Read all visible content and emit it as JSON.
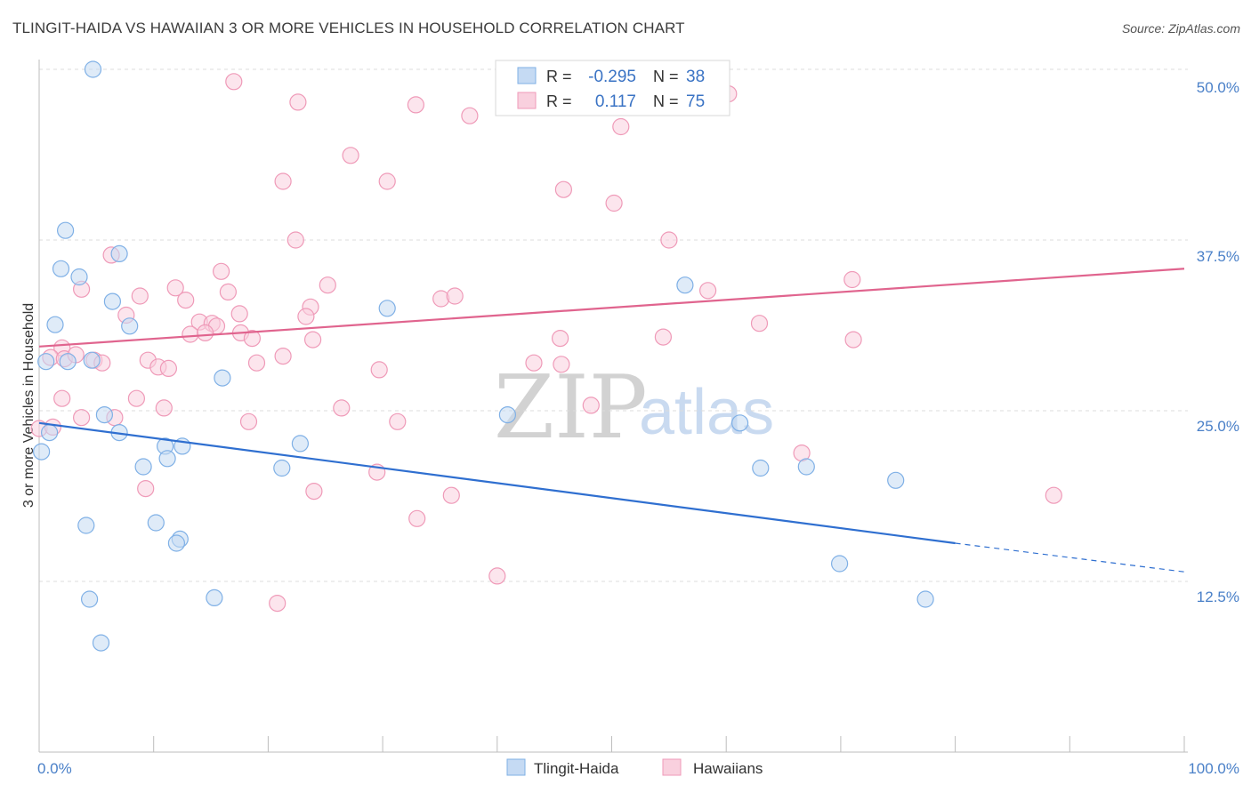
{
  "title": "TLINGIT-HAIDA VS HAWAIIAN 3 OR MORE VEHICLES IN HOUSEHOLD CORRELATION CHART",
  "source": "Source: ZipAtlas.com",
  "watermark": {
    "zip": "ZIP",
    "atlas": "atlas"
  },
  "colors": {
    "blue": "#7fb0e6",
    "blue_fill": "#c5daf3",
    "blue_line": "#2f6fd0",
    "pink": "#ef9ab8",
    "pink_fill": "#f9d0de",
    "pink_line": "#e0648e",
    "axis_text": "#4a80c8"
  },
  "legend": {
    "rows": [
      {
        "r_label": "R =",
        "r_value": "-0.295",
        "n_label": "N =",
        "n_value": "38"
      },
      {
        "r_label": "R =",
        "r_value": "0.117",
        "n_label": "N =",
        "n_value": "75"
      }
    ]
  },
  "bottom_legend": {
    "items": [
      {
        "label": "Tlingit-Haida"
      },
      {
        "label": "Hawaiians"
      }
    ]
  },
  "chart_data": {
    "type": "scatter",
    "ylabel": "3 or more Vehicles in Household",
    "x_tick_labels": [
      "0.0%",
      "100.0%"
    ],
    "y_tick_labels": [
      "12.5%",
      "25.0%",
      "37.5%",
      "50.0%"
    ],
    "xlim": [
      0,
      100
    ],
    "ylim": [
      0,
      50
    ],
    "grid": true,
    "series": [
      {
        "name": "Tlingit-Haida",
        "color": "blue",
        "trend": {
          "x0": 0,
          "y0": 24.1,
          "x1": 80,
          "y1": 15.3,
          "dash_to_x": 100,
          "dash_to_y": 13.2
        },
        "points": [
          [
            4.7,
            50.0
          ],
          [
            2.3,
            38.2
          ],
          [
            7.0,
            36.5
          ],
          [
            1.9,
            35.4
          ],
          [
            3.5,
            34.8
          ],
          [
            6.4,
            33.0
          ],
          [
            4.6,
            28.7
          ],
          [
            7.9,
            31.2
          ],
          [
            1.4,
            31.3
          ],
          [
            0.6,
            28.6
          ],
          [
            2.5,
            28.6
          ],
          [
            16.0,
            27.4
          ],
          [
            30.4,
            32.5
          ],
          [
            56.4,
            34.2
          ],
          [
            5.7,
            24.7
          ],
          [
            0.9,
            23.4
          ],
          [
            7.0,
            23.4
          ],
          [
            9.1,
            20.9
          ],
          [
            11.0,
            22.4
          ],
          [
            12.5,
            22.4
          ],
          [
            11.2,
            21.5
          ],
          [
            22.8,
            22.6
          ],
          [
            21.2,
            20.8
          ],
          [
            0.2,
            22.0
          ],
          [
            40.9,
            24.7
          ],
          [
            61.2,
            24.1
          ],
          [
            63.0,
            20.8
          ],
          [
            67.0,
            20.9
          ],
          [
            74.8,
            19.9
          ],
          [
            4.1,
            16.6
          ],
          [
            10.2,
            16.8
          ],
          [
            12.3,
            15.6
          ],
          [
            12.0,
            15.3
          ],
          [
            4.4,
            11.2
          ],
          [
            15.3,
            11.3
          ],
          [
            69.9,
            13.8
          ],
          [
            77.4,
            11.2
          ],
          [
            5.4,
            8.0
          ]
        ]
      },
      {
        "name": "Hawaiians",
        "color": "pink",
        "trend": {
          "x0": 0,
          "y0": 29.7,
          "x1": 100,
          "y1": 35.4
        },
        "points": [
          [
            17.0,
            49.1
          ],
          [
            22.6,
            47.6
          ],
          [
            32.9,
            47.4
          ],
          [
            37.6,
            46.6
          ],
          [
            60.2,
            48.2
          ],
          [
            50.8,
            45.8
          ],
          [
            27.2,
            43.7
          ],
          [
            21.3,
            41.8
          ],
          [
            30.4,
            41.8
          ],
          [
            45.8,
            41.2
          ],
          [
            50.2,
            40.2
          ],
          [
            55.0,
            37.5
          ],
          [
            22.4,
            37.5
          ],
          [
            6.3,
            36.4
          ],
          [
            15.9,
            35.2
          ],
          [
            16.5,
            33.7
          ],
          [
            25.2,
            34.2
          ],
          [
            8.8,
            33.4
          ],
          [
            12.8,
            33.1
          ],
          [
            11.9,
            34.0
          ],
          [
            3.7,
            33.9
          ],
          [
            35.1,
            33.2
          ],
          [
            36.3,
            33.4
          ],
          [
            23.7,
            32.6
          ],
          [
            17.5,
            32.1
          ],
          [
            7.6,
            32.0
          ],
          [
            14.0,
            31.5
          ],
          [
            15.1,
            31.4
          ],
          [
            15.5,
            31.2
          ],
          [
            23.3,
            31.9
          ],
          [
            13.2,
            30.6
          ],
          [
            14.5,
            30.7
          ],
          [
            17.6,
            30.7
          ],
          [
            18.6,
            30.3
          ],
          [
            23.9,
            30.2
          ],
          [
            45.5,
            30.3
          ],
          [
            2.0,
            29.6
          ],
          [
            1.0,
            28.9
          ],
          [
            2.2,
            28.8
          ],
          [
            3.2,
            29.1
          ],
          [
            4.8,
            28.7
          ],
          [
            5.5,
            28.5
          ],
          [
            9.5,
            28.7
          ],
          [
            10.4,
            28.2
          ],
          [
            11.3,
            28.1
          ],
          [
            19.0,
            28.5
          ],
          [
            21.3,
            29.0
          ],
          [
            29.7,
            28.0
          ],
          [
            43.2,
            28.5
          ],
          [
            45.6,
            28.4
          ],
          [
            54.5,
            30.4
          ],
          [
            71.0,
            34.6
          ],
          [
            2.0,
            25.9
          ],
          [
            8.5,
            25.9
          ],
          [
            10.9,
            25.2
          ],
          [
            26.4,
            25.2
          ],
          [
            6.6,
            24.5
          ],
          [
            18.3,
            24.2
          ],
          [
            31.3,
            24.2
          ],
          [
            48.2,
            25.4
          ],
          [
            3.7,
            24.5
          ],
          [
            0.0,
            23.7
          ],
          [
            1.2,
            23.8
          ],
          [
            9.3,
            19.3
          ],
          [
            29.5,
            20.5
          ],
          [
            24.0,
            19.1
          ],
          [
            36.0,
            18.8
          ],
          [
            33.0,
            17.1
          ],
          [
            40.0,
            12.9
          ],
          [
            20.8,
            10.9
          ],
          [
            66.6,
            21.9
          ],
          [
            71.1,
            30.2
          ],
          [
            88.6,
            18.8
          ],
          [
            58.4,
            33.8
          ],
          [
            62.9,
            31.4
          ]
        ]
      }
    ]
  }
}
